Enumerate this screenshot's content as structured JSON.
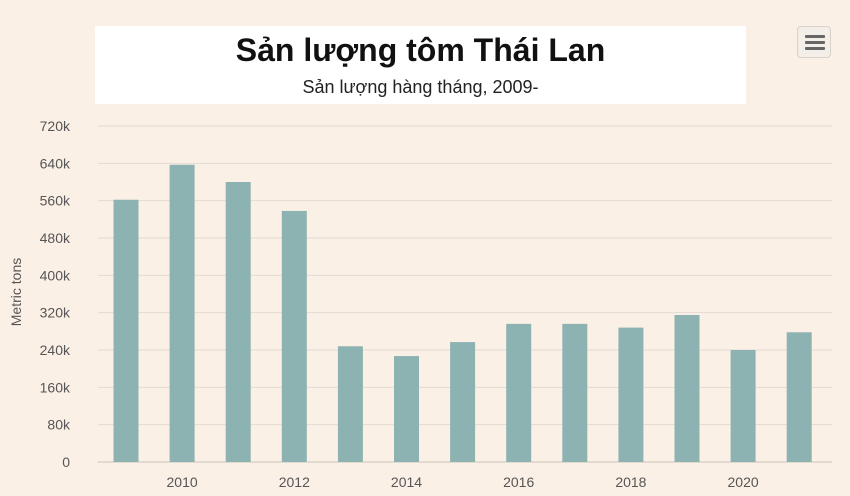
{
  "chart_data": {
    "type": "bar",
    "title": "Sản lượng tôm Thái Lan",
    "subtitle": "Sản lượng hàng tháng, 2009-",
    "xlabel": "",
    "ylabel": "Metric tons",
    "categories": [
      2009,
      2010,
      2011,
      2012,
      2013,
      2014,
      2015,
      2016,
      2017,
      2018,
      2019,
      2020,
      2021
    ],
    "values": [
      562000,
      637000,
      600000,
      538000,
      248000,
      227000,
      257000,
      296000,
      296000,
      288000,
      315000,
      240000,
      278000
    ],
    "ylim": [
      0,
      720000
    ],
    "y_ticks": [
      "0",
      "80k",
      "160k",
      "240k",
      "320k",
      "400k",
      "480k",
      "560k",
      "640k",
      "720k"
    ],
    "x_ticks": [
      "2010",
      "2012",
      "2014",
      "2016",
      "2018",
      "2020"
    ],
    "x_tick_values": [
      2010,
      2012,
      2014,
      2016,
      2018,
      2020
    ],
    "bar_color": "#8db2b2",
    "grid": true,
    "legend": "none"
  },
  "colors": {
    "background": "#fbf0e6",
    "gridline": "#e2dcd6",
    "bar": "#8db2b2"
  },
  "menu": {
    "icon": "hamburger-menu-icon"
  }
}
